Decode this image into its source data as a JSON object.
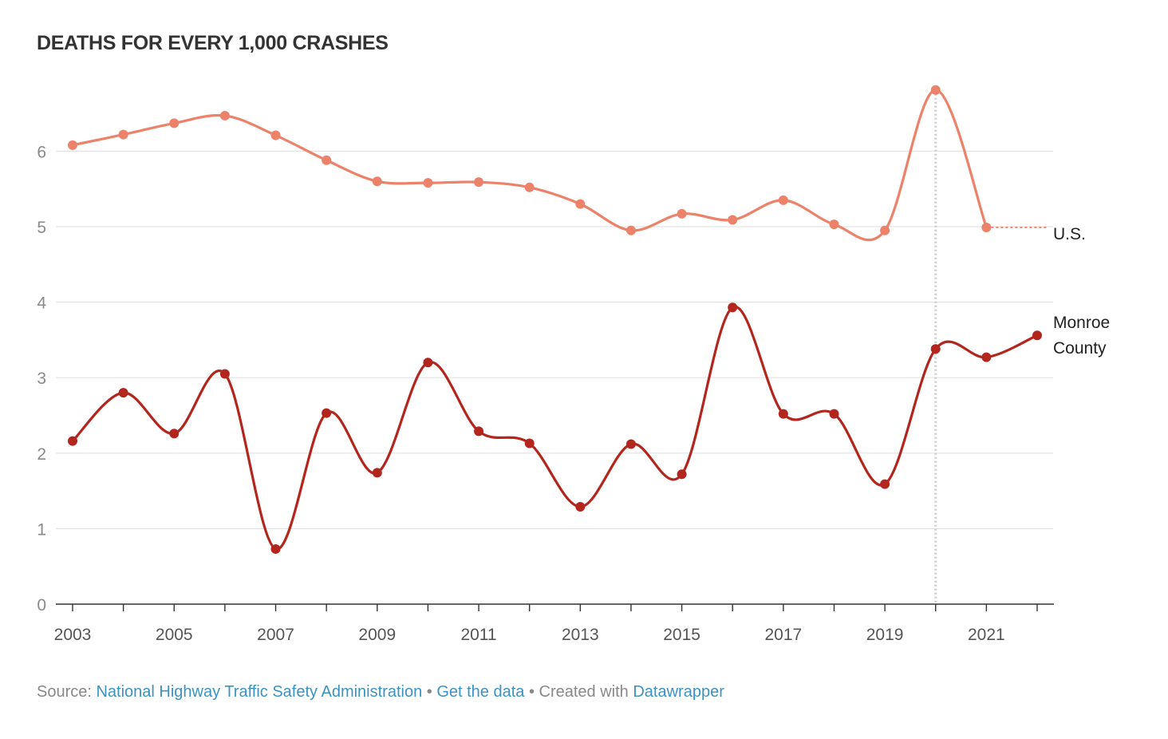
{
  "chart_data": {
    "type": "line",
    "title": "DEATHS FOR EVERY 1,000 CRASHES",
    "x": [
      2003,
      2004,
      2005,
      2006,
      2007,
      2008,
      2009,
      2010,
      2011,
      2012,
      2013,
      2014,
      2015,
      2016,
      2017,
      2018,
      2019,
      2020,
      2021,
      2022
    ],
    "x_tick_labels": [
      "2003",
      "2005",
      "2007",
      "2009",
      "2011",
      "2013",
      "2015",
      "2017",
      "2019",
      "2021"
    ],
    "y_ticks": [
      0,
      1,
      2,
      3,
      4,
      5,
      6
    ],
    "ylim": [
      0,
      7
    ],
    "xlim": [
      2003,
      2022
    ],
    "grid": true,
    "highlight_x": 2020,
    "series": [
      {
        "name": "U.S.",
        "color": "#ec826a",
        "values": [
          6.08,
          6.22,
          6.37,
          6.47,
          6.21,
          5.88,
          5.6,
          5.58,
          5.59,
          5.52,
          5.3,
          4.95,
          5.17,
          5.09,
          5.35,
          5.03,
          4.95,
          6.81,
          4.99,
          null
        ],
        "extend_dotted_to": 2022
      },
      {
        "name": "Monroe County",
        "label_lines": [
          "Monroe",
          "County"
        ],
        "color": "#b3261e",
        "values": [
          2.16,
          2.8,
          2.26,
          3.05,
          0.73,
          2.53,
          1.74,
          3.2,
          2.29,
          2.13,
          1.29,
          2.12,
          1.72,
          3.93,
          2.52,
          2.52,
          1.59,
          3.38,
          3.27,
          3.56
        ]
      }
    ]
  },
  "footer": {
    "source_prefix": "Source: ",
    "source_link": "National Highway Traffic Safety Administration",
    "sep1": " • ",
    "get_data": "Get the data",
    "sep2": " • Created with ",
    "datawrapper": "Datawrapper"
  }
}
